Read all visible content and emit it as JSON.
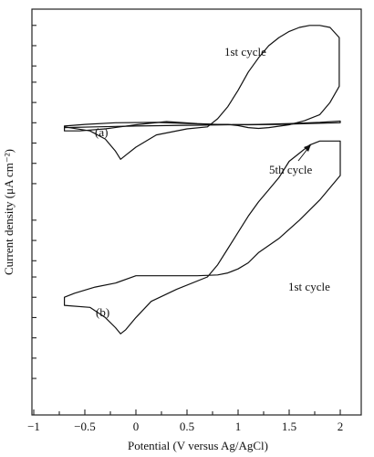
{
  "chart_data": {
    "type": "line",
    "xlabel": "Potential (V versus Ag/AgCl)",
    "ylabel": "Current density (μA cm⁻²)",
    "xlim": [
      -1,
      2.15
    ],
    "x_ticks": [
      -1,
      -0.5,
      0,
      0.5,
      1,
      1.5,
      2
    ],
    "x_tick_labels": [
      "−1",
      "−0.5",
      "0",
      "0.5",
      "1",
      "1.5",
      "2"
    ],
    "y_unit_note": "y axis has unlabeled ticks only",
    "ylim": [
      0,
      100
    ],
    "y_ticks": [
      96,
      91,
      86,
      82,
      77,
      72,
      67,
      62,
      57,
      48,
      43,
      38,
      34,
      29,
      24,
      19,
      14,
      9
    ],
    "grid": false,
    "annotations": {
      "panel_a": "(a)",
      "panel_b": "(b)",
      "first_cycle_a": "1st cycle",
      "fifth_cycle_a": "5th cycle",
      "first_cycle_b": "1st cycle"
    },
    "series": [
      {
        "panel": "a",
        "x": [
          -0.7,
          -0.45,
          -0.3,
          -0.2,
          -0.15,
          -0.1,
          0.0,
          0.2,
          0.5,
          0.7,
          0.8,
          0.9,
          1.0,
          1.1,
          1.2,
          1.3,
          1.4,
          1.5,
          1.6,
          1.7,
          1.8,
          1.9,
          1.99,
          1.99,
          1.9,
          1.8,
          1.65,
          1.5,
          1.3,
          1.2,
          1.1,
          1.0,
          0.9,
          0.8,
          0.6,
          0.3,
          0.0,
          -0.3,
          -0.55,
          -0.7
        ],
        "y": [
          71,
          70,
          68,
          65,
          63,
          64,
          66,
          69,
          70.5,
          71,
          73,
          76,
          80,
          84.5,
          88,
          91,
          93,
          94.5,
          95.5,
          96,
          96,
          95.5,
          93,
          81,
          77,
          74,
          72.5,
          71.5,
          70.8,
          70.6,
          70.8,
          71.3,
          71.6,
          71.6,
          71.8,
          72.3,
          71.5,
          70.5,
          70,
          70
        ]
      },
      {
        "panel": "a",
        "x": [
          -0.7,
          -0.4,
          0.0,
          0.3,
          0.6,
          0.9,
          1.2,
          1.5,
          1.8,
          2.0,
          2.0,
          1.7,
          1.4,
          1.1,
          0.8,
          0.5,
          0.2,
          -0.2,
          -0.5,
          -0.7
        ],
        "y": [
          70.8,
          71,
          71.2,
          71.3,
          71.4,
          71.5,
          71.6,
          71.8,
          72.1,
          72.4,
          72.0,
          71.8,
          71.6,
          71.5,
          71.6,
          71.8,
          72.1,
          72.0,
          71.6,
          71.2
        ]
      },
      {
        "panel": "b",
        "x": [
          -0.7,
          -0.45,
          -0.3,
          -0.2,
          -0.15,
          -0.1,
          0.0,
          0.15,
          0.4,
          0.7,
          0.8,
          0.9,
          1.0,
          1.1,
          1.2,
          1.3,
          1.4,
          1.5,
          1.6,
          1.7,
          1.8,
          2.0,
          2.0,
          1.8,
          1.6,
          1.4,
          1.2,
          1.1,
          1.0,
          0.9,
          0.8,
          0.6,
          0.4,
          0.2,
          0.0,
          -0.2,
          -0.4,
          -0.6,
          -0.7
        ],
        "y": [
          27,
          26.5,
          24,
          21.5,
          20,
          21,
          24,
          28,
          31,
          34,
          37,
          41,
          45,
          49,
          52.5,
          55.5,
          58.5,
          62.5,
          64.5,
          66.5,
          67.5,
          67.5,
          59,
          53,
          48,
          43.5,
          40,
          37.5,
          36,
          35,
          34.5,
          34.3,
          34.3,
          34.3,
          34.3,
          32.5,
          31.5,
          30,
          29
        ]
      }
    ]
  }
}
